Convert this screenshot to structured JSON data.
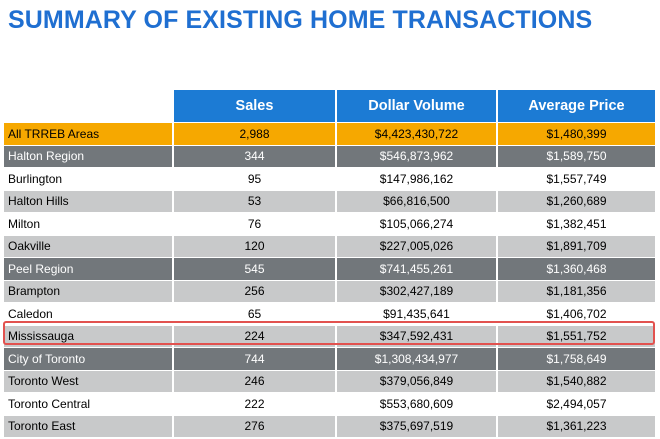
{
  "title": "SUMMARY OF EXISTING HOME TRANSACTIONS",
  "colors": {
    "title": "#1f6fd1",
    "header_bg": "#1c7bd4",
    "total_row": "#f6a800",
    "region_row": "#72777b",
    "light_row": "#c8c9ca",
    "highlight_border": "#e2524f"
  },
  "columns": [
    "Sales",
    "Dollar Volume",
    "Average Price"
  ],
  "rows": [
    {
      "name": "All TRREB Areas",
      "sales": "2,988",
      "volume": "$4,423,430,722",
      "avg": "$1,480,399",
      "style": "total"
    },
    {
      "name": "Halton Region",
      "sales": "344",
      "volume": "$546,873,962",
      "avg": "$1,589,750",
      "style": "region"
    },
    {
      "name": "Burlington",
      "sales": "95",
      "volume": "$147,986,162",
      "avg": "$1,557,749",
      "style": "white"
    },
    {
      "name": "Halton Hills",
      "sales": "53",
      "volume": "$66,816,500",
      "avg": "$1,260,689",
      "style": "light"
    },
    {
      "name": "Milton",
      "sales": "76",
      "volume": "$105,066,274",
      "avg": "$1,382,451",
      "style": "white"
    },
    {
      "name": "Oakville",
      "sales": "120",
      "volume": "$227,005,026",
      "avg": "$1,891,709",
      "style": "light"
    },
    {
      "name": "Peel Region",
      "sales": "545",
      "volume": "$741,455,261",
      "avg": "$1,360,468",
      "style": "region"
    },
    {
      "name": "Brampton",
      "sales": "256",
      "volume": "$302,427,189",
      "avg": "$1,181,356",
      "style": "light"
    },
    {
      "name": "Caledon",
      "sales": "65",
      "volume": "$91,435,641",
      "avg": "$1,406,702",
      "style": "white"
    },
    {
      "name": "Mississauga",
      "sales": "224",
      "volume": "$347,592,431",
      "avg": "$1,551,752",
      "style": "light",
      "highlighted": true
    },
    {
      "name": "City of Toronto",
      "sales": "744",
      "volume": "$1,308,434,977",
      "avg": "$1,758,649",
      "style": "region"
    },
    {
      "name": "Toronto West",
      "sales": "246",
      "volume": "$379,056,849",
      "avg": "$1,540,882",
      "style": "light"
    },
    {
      "name": "Toronto Central",
      "sales": "222",
      "volume": "$553,680,609",
      "avg": "$2,494,057",
      "style": "white"
    },
    {
      "name": "Toronto East",
      "sales": "276",
      "volume": "$375,697,519",
      "avg": "$1,361,223",
      "style": "light"
    }
  ]
}
